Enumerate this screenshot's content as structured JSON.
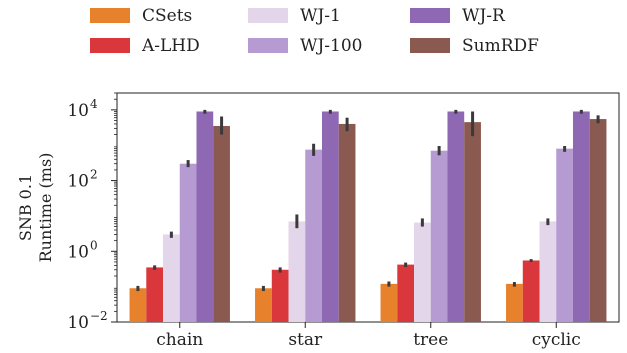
{
  "chart_data": {
    "type": "bar",
    "title": "",
    "ylabel_lines": [
      "SNB 0.1",
      "Runtime (ms)"
    ],
    "xlabel": "",
    "yscale": "log",
    "ylim": [
      0.01,
      30000
    ],
    "yticks": [
      {
        "value": 0.01,
        "base": "10",
        "exp": "−2"
      },
      {
        "value": 1,
        "base": "10",
        "exp": "0"
      },
      {
        "value": 100,
        "base": "10",
        "exp": "2"
      },
      {
        "value": 10000,
        "base": "10",
        "exp": "4"
      }
    ],
    "categories": [
      "chain",
      "star",
      "tree",
      "cyclic"
    ],
    "legend_position": "top",
    "series": [
      {
        "name": "CSets",
        "color": "#e8812b",
        "values": [
          0.09,
          0.09,
          0.12,
          0.12
        ],
        "err_low": [
          0.075,
          0.075,
          0.1,
          0.1
        ],
        "err_high": [
          0.105,
          0.105,
          0.14,
          0.135
        ]
      },
      {
        "name": "A-LHD",
        "color": "#d9373b",
        "values": [
          0.35,
          0.3,
          0.42,
          0.55
        ],
        "err_low": [
          0.3,
          0.25,
          0.36,
          0.5
        ],
        "err_high": [
          0.4,
          0.35,
          0.48,
          0.6
        ]
      },
      {
        "name": "WJ-1",
        "color": "#e3d5ea",
        "values": [
          3.0,
          7.0,
          6.5,
          7.0
        ],
        "err_low": [
          2.4,
          4.5,
          5.0,
          5.5
        ],
        "err_high": [
          3.6,
          11.0,
          8.5,
          8.5
        ]
      },
      {
        "name": "WJ-100",
        "color": "#b59bd2",
        "values": [
          300,
          750,
          700,
          800
        ],
        "err_low": [
          240,
          500,
          520,
          650
        ],
        "err_high": [
          380,
          1100,
          950,
          950
        ]
      },
      {
        "name": "WJ-R",
        "color": "#8e68b3",
        "values": [
          9000,
          9000,
          9000,
          9000
        ],
        "err_low": [
          7800,
          7800,
          7800,
          7800
        ],
        "err_high": [
          10000,
          10000,
          10000,
          10000
        ]
      },
      {
        "name": "SumRDF",
        "color": "#8a5a50",
        "values": [
          3500,
          4000,
          4500,
          5500
        ],
        "err_low": [
          2000,
          2500,
          1800,
          4200
        ],
        "err_high": [
          6500,
          6000,
          9000,
          7000
        ]
      }
    ]
  }
}
